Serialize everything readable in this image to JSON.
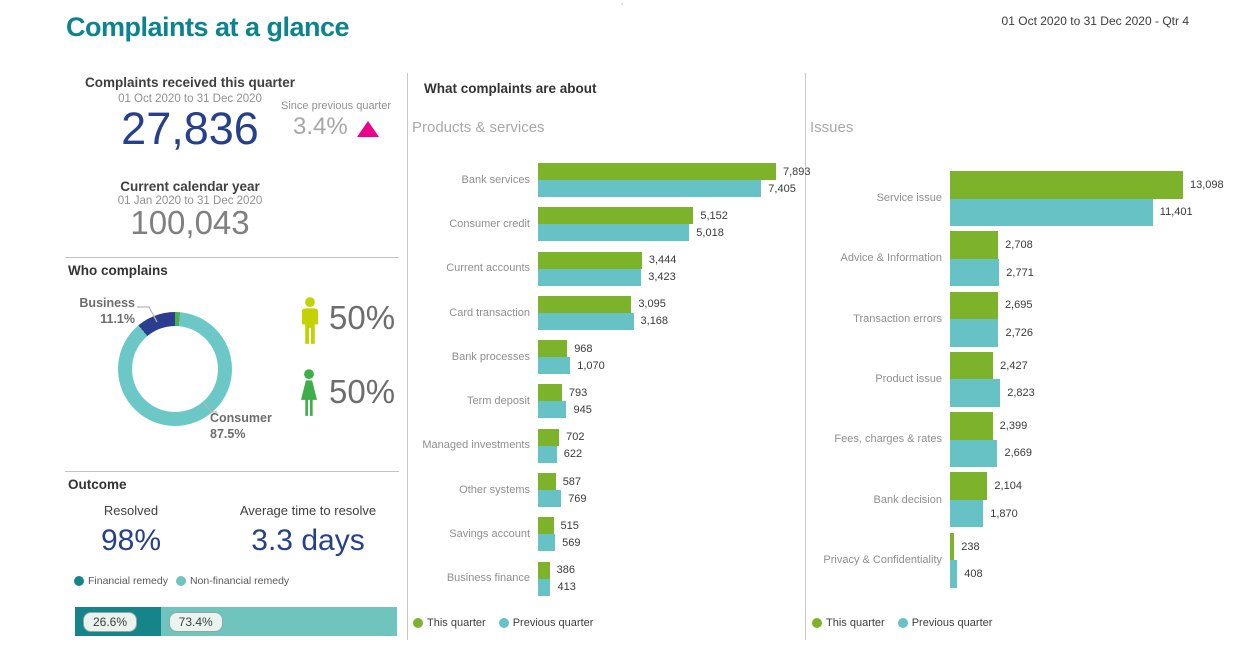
{
  "header": {
    "title": "Complaints at a glance",
    "period_label": "01 Oct 2020 to 31 Dec 2020 - Qtr 4",
    "stray_mark": "'"
  },
  "colors": {
    "title_teal": "#0b8490",
    "kpi_blue": "#26408c",
    "increase_pink": "#ec008c",
    "this_quarter_green": "#7db32b",
    "previous_quarter_teal": "#66c2c4",
    "business_navy": "#2b3d8f",
    "consumer_teal": "#6cc7c7",
    "other_green": "#4cae4f",
    "male_icon": "#c3d202",
    "female_icon": "#3dae49",
    "financial_teal": "#15858a",
    "nonfinancial_teal": "#6fc4bd"
  },
  "kpi": {
    "received_title": "Complaints received this quarter",
    "received_period": "01 Oct 2020 to 31 Dec 2020",
    "received_value": "27,836",
    "since_label": "Since previous quarter",
    "since_value": "3.4%",
    "year_title": "Current calendar year",
    "year_period": "01 Jan 2020 to 31 Dec 2020",
    "year_value": "100,043"
  },
  "who_complains": {
    "title": "Who complains",
    "male_pct": "50%",
    "female_pct": "50%"
  },
  "outcome": {
    "title": "Outcome",
    "resolved_label": "Resolved",
    "resolved_value": "98%",
    "avg_label": "Average time to resolve",
    "avg_value": "3.3 days"
  },
  "middle": {
    "section_title": "What complaints are about"
  },
  "chart_data": [
    {
      "type": "pie",
      "title": "Who complains",
      "subtype": "donut",
      "segments": [
        {
          "label": "",
          "display": "",
          "value": 1.4,
          "color": "#4cae4f"
        },
        {
          "label": "Consumer",
          "display": "87.5%",
          "value": 87.5,
          "color": "#6cc7c7"
        },
        {
          "label": "Business",
          "display": "11.1%",
          "value": 11.1,
          "color": "#2b3d8f"
        }
      ]
    },
    {
      "type": "bar",
      "subtype": "stacked-horizontal",
      "title": "Outcome remedy split",
      "segments": [
        {
          "label": "Financial remedy",
          "display": "26.6%",
          "value": 26.6,
          "color": "#15858a"
        },
        {
          "label": "Non-financial remedy",
          "display": "73.4%",
          "value": 73.4,
          "color": "#6fc4bd"
        }
      ]
    },
    {
      "type": "bar",
      "orientation": "horizontal",
      "title": "Products & services",
      "categories": [
        "Bank services",
        "Consumer credit",
        "Current accounts",
        "Card transaction",
        "Bank processes",
        "Term deposit",
        "Managed investments",
        "Other systems",
        "Savings account",
        "Business finance"
      ],
      "series": [
        {
          "name": "This quarter",
          "color": "#7db32b",
          "values": [
            7893,
            5152,
            3444,
            3095,
            968,
            793,
            702,
            587,
            515,
            386
          ]
        },
        {
          "name": "Previous quarter",
          "color": "#66c2c4",
          "values": [
            7405,
            5018,
            3423,
            3168,
            1070,
            945,
            622,
            769,
            569,
            413
          ]
        }
      ],
      "legend_position": "bottom",
      "grid": false
    },
    {
      "type": "bar",
      "orientation": "horizontal",
      "title": "Issues",
      "categories": [
        "Service issue",
        "Advice & Information",
        "Transaction errors",
        "Product issue",
        "Fees, charges & rates",
        "Bank decision",
        "Privacy & Confidentiality"
      ],
      "series": [
        {
          "name": "This quarter",
          "color": "#7db32b",
          "values": [
            13098,
            2708,
            2695,
            2427,
            2399,
            2104,
            238
          ]
        },
        {
          "name": "Previous quarter",
          "color": "#66c2c4",
          "values": [
            11401,
            2771,
            2726,
            2823,
            2669,
            1870,
            408
          ]
        }
      ],
      "legend_position": "bottom",
      "grid": false
    }
  ]
}
